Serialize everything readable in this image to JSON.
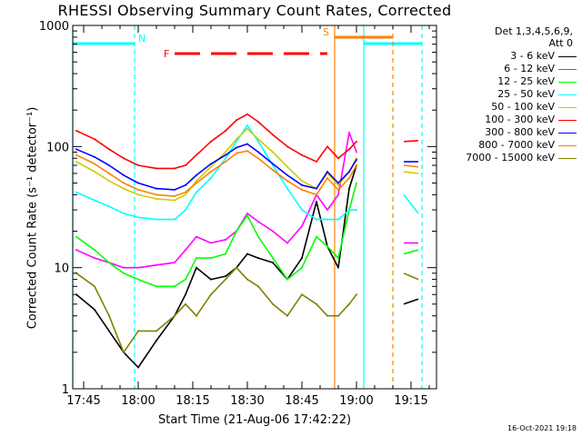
{
  "title": "RHESSI Observing Summary Count Rates, Corrected",
  "legend_header": [
    "Det 1,3,4,5,6,9,",
    "Att 0"
  ],
  "timestamp": "16-Oct-2021 19:18",
  "chart_data": {
    "type": "line",
    "title": "RHESSI Observing Summary Count Rates, Corrected",
    "xlabel": "Start Time (21-Aug-06 17:42:22)",
    "ylabel": "Corrected Count Rate (s⁻¹ detector⁻¹)",
    "y_scale": "log",
    "ylim": [
      1,
      1000
    ],
    "xlim": [
      "17:42",
      "19:22"
    ],
    "x_ticks": [
      "17:45",
      "18:00",
      "18:15",
      "18:30",
      "18:45",
      "19:00",
      "19:15"
    ],
    "y_ticks": [
      "1",
      "10",
      "100",
      "1000"
    ],
    "legend_position": "right",
    "series": [
      {
        "name": "3 - 6 keV",
        "color": "#000000",
        "x": [
          "17:43",
          "17:48",
          "17:52",
          "17:56",
          "18:00",
          "18:05",
          "18:10",
          "18:13",
          "18:16",
          "18:20",
          "18:24",
          "18:27",
          "18:30",
          "18:33",
          "18:37",
          "18:41",
          "18:45",
          "18:49",
          "18:52",
          "18:55",
          "18:58",
          "19:00"
        ],
        "y": [
          6,
          4.5,
          3,
          2,
          1.5,
          2.5,
          4,
          6,
          10,
          8,
          8.5,
          10,
          13,
          12,
          11,
          8,
          12,
          35,
          15,
          10,
          45,
          70
        ]
      },
      {
        "name": "6 - 12 keV",
        "color": "#ff00ff",
        "x": [
          "17:43",
          "17:48",
          "17:52",
          "17:56",
          "18:00",
          "18:05",
          "18:10",
          "18:13",
          "18:16",
          "18:20",
          "18:24",
          "18:27",
          "18:30",
          "18:33",
          "18:37",
          "18:41",
          "18:45",
          "18:49",
          "18:52",
          "18:55",
          "18:58",
          "19:00"
        ],
        "y": [
          14,
          12,
          11,
          10,
          10,
          10.5,
          11,
          14,
          18,
          16,
          17,
          20,
          28,
          24,
          20,
          16,
          22,
          40,
          30,
          40,
          130,
          90
        ]
      },
      {
        "name": "12 - 25 keV",
        "color": "#00ff00",
        "x": [
          "17:43",
          "17:48",
          "17:52",
          "17:56",
          "18:00",
          "18:05",
          "18:10",
          "18:13",
          "18:16",
          "18:20",
          "18:24",
          "18:27",
          "18:30",
          "18:33",
          "18:37",
          "18:41",
          "18:45",
          "18:49",
          "18:52",
          "18:55",
          "18:58",
          "19:00"
        ],
        "y": [
          18,
          14,
          11,
          9,
          8,
          7,
          7,
          8,
          12,
          12,
          13,
          20,
          27,
          18,
          12,
          8,
          10,
          18,
          15,
          12,
          30,
          50
        ]
      },
      {
        "name": "25 - 50 keV",
        "color": "#00ffff",
        "x": [
          "17:43",
          "17:48",
          "17:52",
          "17:56",
          "18:00",
          "18:05",
          "18:10",
          "18:13",
          "18:16",
          "18:20",
          "18:24",
          "18:27",
          "18:30",
          "18:33",
          "18:37",
          "18:41",
          "18:45",
          "18:49",
          "18:52",
          "18:55",
          "18:58",
          "19:00"
        ],
        "y": [
          42,
          36,
          32,
          28,
          26,
          25,
          25,
          30,
          42,
          55,
          80,
          110,
          150,
          110,
          70,
          45,
          30,
          25,
          25,
          25,
          30,
          30
        ]
      },
      {
        "name": "50 - 100 keV",
        "color": "#cccc00",
        "x": [
          "17:43",
          "17:48",
          "17:52",
          "17:56",
          "18:00",
          "18:05",
          "18:10",
          "18:13",
          "18:16",
          "18:20",
          "18:24",
          "18:27",
          "18:30",
          "18:33",
          "18:37",
          "18:41",
          "18:45",
          "18:49",
          "18:52",
          "18:55",
          "18:58",
          "19:00"
        ],
        "y": [
          75,
          62,
          52,
          45,
          40,
          37,
          36,
          40,
          52,
          68,
          90,
          115,
          140,
          115,
          90,
          68,
          52,
          45,
          60,
          48,
          62,
          80
        ]
      },
      {
        "name": "100 - 300 keV",
        "color": "#ff0000",
        "x": [
          "17:43",
          "17:48",
          "17:52",
          "17:56",
          "18:00",
          "18:05",
          "18:10",
          "18:13",
          "18:16",
          "18:20",
          "18:24",
          "18:27",
          "18:30",
          "18:33",
          "18:37",
          "18:41",
          "18:45",
          "18:49",
          "18:52",
          "18:55",
          "18:58",
          "19:00"
        ],
        "y": [
          135,
          115,
          95,
          80,
          70,
          66,
          66,
          70,
          85,
          110,
          135,
          165,
          185,
          160,
          125,
          100,
          85,
          75,
          100,
          80,
          95,
          110
        ]
      },
      {
        "name": "300 - 800 keV",
        "color": "#0000ff",
        "x": [
          "17:43",
          "17:48",
          "17:52",
          "17:56",
          "18:00",
          "18:05",
          "18:10",
          "18:13",
          "18:16",
          "18:20",
          "18:24",
          "18:27",
          "18:30",
          "18:33",
          "18:37",
          "18:41",
          "18:45",
          "18:49",
          "18:52",
          "18:55",
          "18:58",
          "19:00"
        ],
        "y": [
          95,
          82,
          70,
          58,
          50,
          45,
          44,
          48,
          58,
          72,
          85,
          98,
          105,
          90,
          72,
          58,
          48,
          45,
          62,
          50,
          62,
          78
        ]
      },
      {
        "name": "800 - 7000 keV",
        "color": "#ff8000",
        "x": [
          "17:43",
          "17:48",
          "17:52",
          "17:56",
          "18:00",
          "18:05",
          "18:10",
          "18:13",
          "18:16",
          "18:20",
          "18:24",
          "18:27",
          "18:30",
          "18:33",
          "18:37",
          "18:41",
          "18:45",
          "18:49",
          "18:52",
          "18:55",
          "18:58",
          "19:00"
        ],
        "y": [
          85,
          72,
          60,
          50,
          44,
          40,
          39,
          42,
          50,
          62,
          75,
          88,
          92,
          80,
          64,
          52,
          44,
          40,
          55,
          44,
          55,
          70
        ]
      },
      {
        "name": "7000 - 15000 keV",
        "color": "#808000",
        "x": [
          "17:43",
          "17:48",
          "17:52",
          "17:56",
          "18:00",
          "18:05",
          "18:10",
          "18:13",
          "18:16",
          "18:20",
          "18:24",
          "18:27",
          "18:30",
          "18:33",
          "18:37",
          "18:41",
          "18:45",
          "18:49",
          "18:52",
          "18:55",
          "18:58",
          "19:00"
        ],
        "y": [
          9,
          7,
          4,
          2,
          3,
          3,
          4,
          5,
          4,
          6,
          8,
          10,
          8,
          7,
          5,
          4,
          6,
          5,
          4,
          4,
          5,
          6
        ]
      }
    ],
    "series_after_gap": [
      {
        "name": "3 - 6 keV",
        "x": [
          "19:13",
          "19:17"
        ],
        "y": [
          5,
          5.5
        ]
      },
      {
        "name": "6 - 12 keV",
        "x": [
          "19:13",
          "19:17"
        ],
        "y": [
          16,
          16
        ]
      },
      {
        "name": "12 - 25 keV",
        "x": [
          "19:13",
          "19:17"
        ],
        "y": [
          13,
          14
        ]
      },
      {
        "name": "25 - 50 keV",
        "x": [
          "19:13",
          "19:17"
        ],
        "y": [
          40,
          28
        ]
      },
      {
        "name": "50 - 100 keV",
        "x": [
          "19:13",
          "19:17"
        ],
        "y": [
          62,
          60
        ]
      },
      {
        "name": "100 - 300 keV",
        "x": [
          "19:13",
          "19:17"
        ],
        "y": [
          110,
          112
        ]
      },
      {
        "name": "300 - 800 keV",
        "x": [
          "19:13",
          "19:17"
        ],
        "y": [
          75,
          75
        ]
      },
      {
        "name": "800 - 7000 keV",
        "x": [
          "19:13",
          "19:17"
        ],
        "y": [
          70,
          68
        ]
      },
      {
        "name": "7000 - 15000 keV",
        "x": [
          "19:13",
          "19:17"
        ],
        "y": [
          9,
          8
        ]
      }
    ],
    "night_intervals": [
      {
        "label": "N",
        "start": "17:42",
        "end": "17:59",
        "color": "#00ffff"
      },
      {
        "label": "",
        "start": "19:02",
        "end": "19:18",
        "color": "#00ffff"
      }
    ],
    "saa_intervals": [
      {
        "label": "S",
        "start": "18:54",
        "end": "19:10",
        "color": "#ff8000"
      }
    ],
    "flare_intervals": [
      {
        "label": "F",
        "start": "18:10",
        "end": "18:52",
        "color": "#ff0000"
      }
    ]
  }
}
